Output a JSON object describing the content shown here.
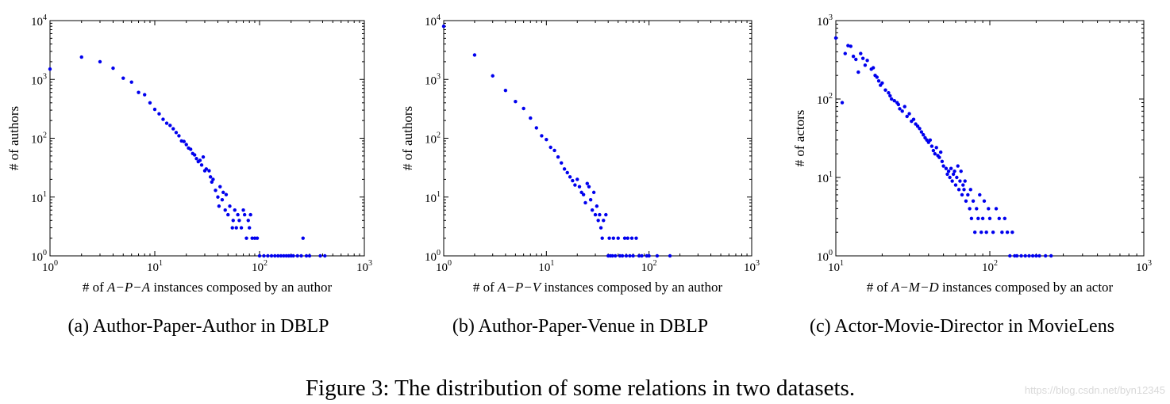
{
  "figure": {
    "caption": "Figure 3: The distribution of some relations in two datasets.",
    "watermark": "https://blog.csdn.net/byn12345"
  },
  "chart_data": [
    {
      "type": "scatter",
      "panel": "a",
      "subcaption": "(a)  Author-Paper-Author in DBLP",
      "xlabel": "# of A−P−A instances composed by an author",
      "ylabel": "# of authors",
      "xscale": "log",
      "yscale": "log",
      "xlim": [
        1,
        1000
      ],
      "ylim": [
        1,
        10000
      ],
      "xticks": [
        "10^0",
        "10^1",
        "10^2",
        "10^3"
      ],
      "yticks": [
        "10^0",
        "10^1",
        "10^2",
        "10^3",
        "10^4"
      ],
      "color": "#0000ee",
      "points": [
        [
          1,
          1500
        ],
        [
          2,
          2400
        ],
        [
          3,
          2000
        ],
        [
          4,
          1550
        ],
        [
          5,
          1050
        ],
        [
          6,
          900
        ],
        [
          7,
          600
        ],
        [
          8,
          550
        ],
        [
          9,
          400
        ],
        [
          10,
          310
        ],
        [
          11,
          260
        ],
        [
          12,
          210
        ],
        [
          13,
          180
        ],
        [
          14,
          165
        ],
        [
          15,
          145
        ],
        [
          16,
          125
        ],
        [
          17,
          110
        ],
        [
          18,
          90
        ],
        [
          19,
          88
        ],
        [
          20,
          78
        ],
        [
          21,
          68
        ],
        [
          22,
          65
        ],
        [
          23,
          55
        ],
        [
          24,
          52
        ],
        [
          25,
          45
        ],
        [
          26,
          40
        ],
        [
          27,
          42
        ],
        [
          28,
          35
        ],
        [
          29,
          48
        ],
        [
          30,
          28
        ],
        [
          31,
          30
        ],
        [
          33,
          28
        ],
        [
          34,
          22
        ],
        [
          35,
          18
        ],
        [
          36,
          20
        ],
        [
          38,
          13
        ],
        [
          40,
          10
        ],
        [
          41,
          7
        ],
        [
          42,
          15
        ],
        [
          44,
          9
        ],
        [
          45,
          12
        ],
        [
          47,
          6
        ],
        [
          48,
          11
        ],
        [
          50,
          5
        ],
        [
          52,
          7
        ],
        [
          55,
          3
        ],
        [
          56,
          4
        ],
        [
          58,
          6
        ],
        [
          60,
          3
        ],
        [
          62,
          5
        ],
        [
          64,
          4
        ],
        [
          67,
          3
        ],
        [
          70,
          6
        ],
        [
          72,
          5
        ],
        [
          75,
          2
        ],
        [
          78,
          4
        ],
        [
          80,
          3
        ],
        [
          82,
          5
        ],
        [
          85,
          2
        ],
        [
          90,
          2
        ],
        [
          95,
          2
        ],
        [
          100,
          1
        ],
        [
          110,
          1
        ],
        [
          120,
          1
        ],
        [
          130,
          1
        ],
        [
          140,
          1
        ],
        [
          150,
          1
        ],
        [
          160,
          1
        ],
        [
          170,
          1
        ],
        [
          180,
          1
        ],
        [
          190,
          1
        ],
        [
          200,
          1
        ],
        [
          210,
          1
        ],
        [
          230,
          1
        ],
        [
          250,
          1
        ],
        [
          260,
          2
        ],
        [
          280,
          1
        ],
        [
          300,
          1
        ],
        [
          380,
          1
        ],
        [
          420,
          1
        ]
      ]
    },
    {
      "type": "scatter",
      "panel": "b",
      "subcaption": "(b)  Author-Paper-Venue in DBLP",
      "xlabel": "# of A−P−V instances composed by an author",
      "ylabel": "# of authors",
      "xscale": "log",
      "yscale": "log",
      "xlim": [
        1,
        1000
      ],
      "ylim": [
        1,
        10000
      ],
      "xticks": [
        "10^0",
        "10^1",
        "10^2",
        "10^3"
      ],
      "yticks": [
        "10^0",
        "10^1",
        "10^2",
        "10^3",
        "10^4"
      ],
      "color": "#0000ee",
      "points": [
        [
          1,
          8000
        ],
        [
          2,
          2600
        ],
        [
          3,
          1150
        ],
        [
          4,
          650
        ],
        [
          5,
          420
        ],
        [
          6,
          320
        ],
        [
          7,
          220
        ],
        [
          8,
          150
        ],
        [
          9,
          110
        ],
        [
          10,
          95
        ],
        [
          11,
          70
        ],
        [
          12,
          62
        ],
        [
          13,
          48
        ],
        [
          14,
          38
        ],
        [
          15,
          30
        ],
        [
          16,
          26
        ],
        [
          17,
          22
        ],
        [
          18,
          19
        ],
        [
          19,
          16
        ],
        [
          20,
          20
        ],
        [
          21,
          15
        ],
        [
          22,
          12
        ],
        [
          23,
          11
        ],
        [
          24,
          8
        ],
        [
          25,
          17
        ],
        [
          26,
          15
        ],
        [
          27,
          9
        ],
        [
          28,
          6
        ],
        [
          29,
          12
        ],
        [
          30,
          5
        ],
        [
          31,
          7
        ],
        [
          32,
          4
        ],
        [
          33,
          5
        ],
        [
          34,
          3
        ],
        [
          35,
          2
        ],
        [
          36,
          4
        ],
        [
          38,
          5
        ],
        [
          40,
          1
        ],
        [
          41,
          2
        ],
        [
          42,
          1
        ],
        [
          44,
          1
        ],
        [
          45,
          2
        ],
        [
          47,
          1
        ],
        [
          50,
          2
        ],
        [
          52,
          1
        ],
        [
          55,
          1
        ],
        [
          58,
          2
        ],
        [
          60,
          1
        ],
        [
          62,
          2
        ],
        [
          65,
          1
        ],
        [
          68,
          2
        ],
        [
          70,
          1
        ],
        [
          75,
          2
        ],
        [
          80,
          1
        ],
        [
          85,
          1
        ],
        [
          95,
          1
        ],
        [
          100,
          1
        ],
        [
          120,
          1
        ],
        [
          160,
          1
        ]
      ]
    },
    {
      "type": "scatter",
      "panel": "c",
      "subcaption": "(c)  Actor-Movie-Director in MovieLens",
      "xlabel": "# of A−M−D instances composed by an actor",
      "ylabel": "# of actors",
      "xscale": "log",
      "yscale": "log",
      "xlim": [
        10,
        1000
      ],
      "ylim": [
        1,
        1000
      ],
      "xticks": [
        "10^1",
        "10^2",
        "10^3"
      ],
      "yticks": [
        "10^0",
        "10^1",
        "10^2",
        "10^3"
      ],
      "color": "#0000ee",
      "points": [
        [
          10,
          600
        ],
        [
          11,
          90
        ],
        [
          11.5,
          380
        ],
        [
          12,
          480
        ],
        [
          12.5,
          470
        ],
        [
          13,
          350
        ],
        [
          13.5,
          320
        ],
        [
          14,
          220
        ],
        [
          14.5,
          380
        ],
        [
          15,
          330
        ],
        [
          15.5,
          270
        ],
        [
          16,
          310
        ],
        [
          17,
          240
        ],
        [
          17.5,
          250
        ],
        [
          18,
          200
        ],
        [
          18.5,
          190
        ],
        [
          19,
          170
        ],
        [
          19.5,
          150
        ],
        [
          20,
          160
        ],
        [
          21,
          130
        ],
        [
          22,
          120
        ],
        [
          22.5,
          110
        ],
        [
          23,
          100
        ],
        [
          24,
          95
        ],
        [
          25,
          90
        ],
        [
          25.5,
          85
        ],
        [
          26,
          75
        ],
        [
          27,
          70
        ],
        [
          28,
          80
        ],
        [
          29,
          60
        ],
        [
          30,
          65
        ],
        [
          31,
          52
        ],
        [
          32,
          55
        ],
        [
          33,
          48
        ],
        [
          34,
          45
        ],
        [
          35,
          42
        ],
        [
          36,
          38
        ],
        [
          37,
          35
        ],
        [
          38,
          32
        ],
        [
          39,
          30
        ],
        [
          40,
          28
        ],
        [
          41,
          30
        ],
        [
          42,
          25
        ],
        [
          43,
          22
        ],
        [
          44,
          20
        ],
        [
          45,
          24
        ],
        [
          46,
          19
        ],
        [
          47,
          18
        ],
        [
          48,
          21
        ],
        [
          49,
          16
        ],
        [
          50,
          14
        ],
        [
          52,
          13
        ],
        [
          53,
          11
        ],
        [
          54,
          12
        ],
        [
          55,
          10
        ],
        [
          56,
          13
        ],
        [
          57,
          9
        ],
        [
          58,
          11
        ],
        [
          59,
          12
        ],
        [
          60,
          8
        ],
        [
          61,
          10
        ],
        [
          62,
          14
        ],
        [
          63,
          7
        ],
        [
          64,
          9
        ],
        [
          65,
          12
        ],
        [
          66,
          6
        ],
        [
          67,
          8
        ],
        [
          68,
          7
        ],
        [
          69,
          9
        ],
        [
          70,
          5
        ],
        [
          72,
          6
        ],
        [
          74,
          4
        ],
        [
          75,
          7
        ],
        [
          76,
          3
        ],
        [
          78,
          5
        ],
        [
          80,
          2
        ],
        [
          82,
          4
        ],
        [
          84,
          3
        ],
        [
          86,
          6
        ],
        [
          88,
          2
        ],
        [
          90,
          3
        ],
        [
          92,
          5
        ],
        [
          95,
          2
        ],
        [
          98,
          4
        ],
        [
          100,
          3
        ],
        [
          105,
          2
        ],
        [
          110,
          4
        ],
        [
          115,
          3
        ],
        [
          120,
          2
        ],
        [
          125,
          3
        ],
        [
          130,
          2
        ],
        [
          135,
          1
        ],
        [
          140,
          2
        ],
        [
          145,
          1
        ],
        [
          150,
          1
        ],
        [
          160,
          1
        ],
        [
          170,
          1
        ],
        [
          180,
          1
        ],
        [
          190,
          1
        ],
        [
          200,
          1
        ],
        [
          210,
          1
        ],
        [
          230,
          1
        ],
        [
          250,
          1
        ]
      ]
    }
  ]
}
